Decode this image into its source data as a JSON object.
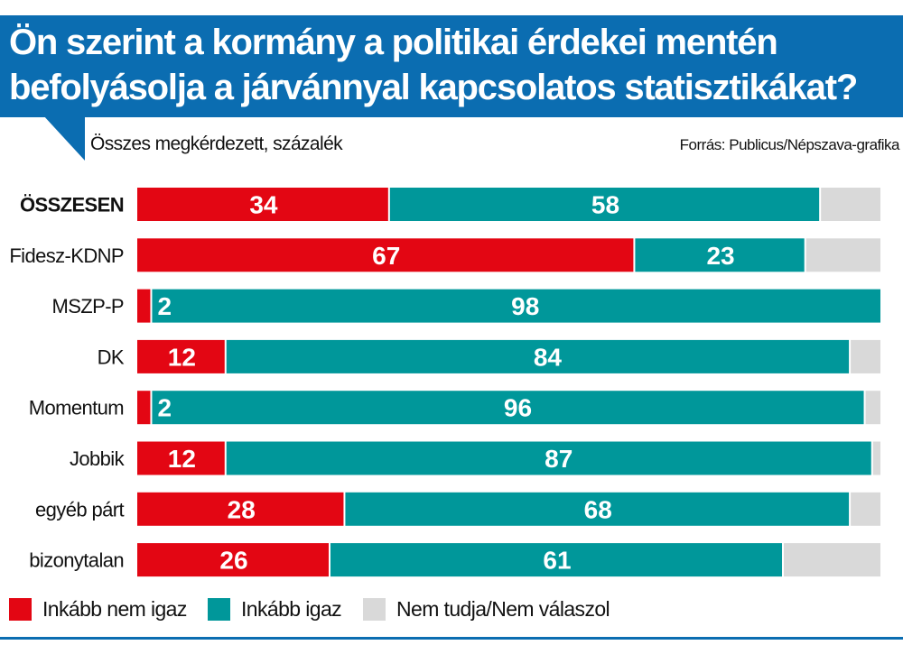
{
  "header": {
    "title_line1": "Ön szerint a kormány a politikai érdekei mentén",
    "title_line2": "befolyásolja a járvánnyal kapcsolatos statisztikákat?",
    "subtitle": "Összes megkérdezett, százalék",
    "source": "Forrás: Publicus/Népszava-grafika",
    "accent_color": "#0b6db1"
  },
  "legend": [
    {
      "label": "Inkább nem igaz",
      "color": "#e30613"
    },
    {
      "label": "Inkább igaz",
      "color": "#00979a"
    },
    {
      "label": "Nem tudja/Nem válaszol",
      "color": "#d9d9d9"
    }
  ],
  "chart_data": {
    "type": "bar",
    "orientation": "horizontal-stacked",
    "title": "Ön szerint a kormány a politikai érdekei mentén befolyásolja a járvánnyal kapcsolatos statisztikákat?",
    "subtitle": "Összes megkérdezett, százalék",
    "xlabel": "",
    "ylabel": "",
    "xlim": [
      0,
      100
    ],
    "grid": false,
    "legend_position": "bottom",
    "categories": [
      "ÖSSZESEN",
      "Fidesz-KDNP",
      "MSZP-P",
      "DK",
      "Momentum",
      "Jobbik",
      "egyéb párt",
      "bizonytalan"
    ],
    "bold_categories": [
      "ÖSSZESEN"
    ],
    "series": [
      {
        "name": "Inkább nem igaz",
        "color": "#e30613",
        "values": [
          34,
          67,
          2,
          12,
          2,
          12,
          28,
          26
        ]
      },
      {
        "name": "Inkább igaz",
        "color": "#00979a",
        "values": [
          58,
          23,
          98,
          84,
          96,
          87,
          68,
          61
        ]
      },
      {
        "name": "Nem tudja/Nem válaszol",
        "color": "#d9d9d9",
        "values": [
          8,
          10,
          0,
          4,
          2,
          1,
          4,
          13
        ],
        "labels_shown": false
      }
    ]
  }
}
